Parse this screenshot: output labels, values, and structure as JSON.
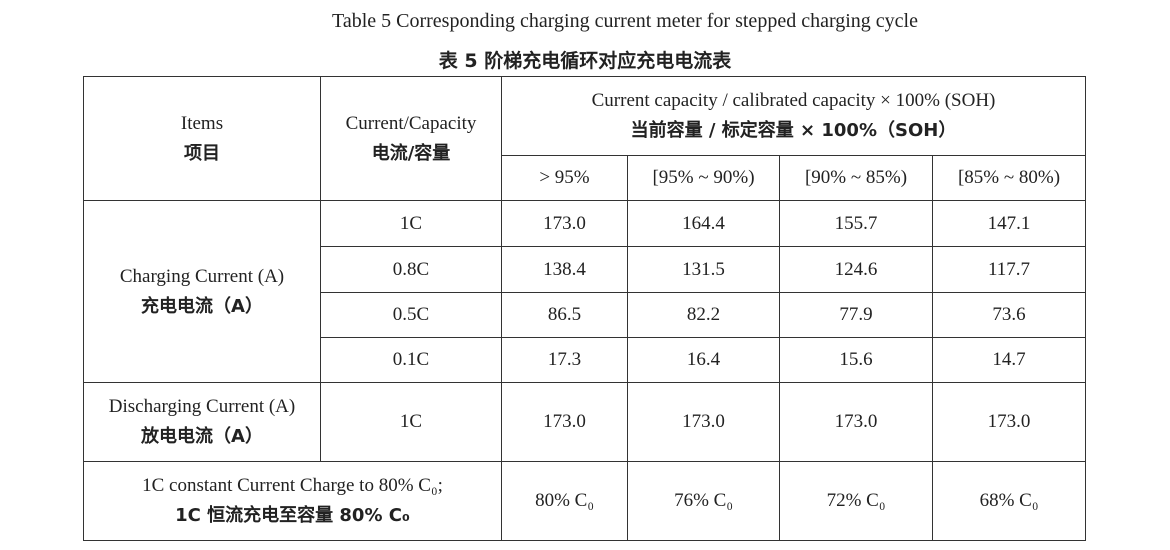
{
  "title_en": "Table 5 Corresponding charging current meter for stepped charging cycle",
  "title_zh": "表 5  阶梯充电循环对应充电电流表",
  "header": {
    "items": [
      "Items",
      "项目"
    ],
    "ratio": [
      "Current/Capacity",
      "电流/容量"
    ],
    "soh": [
      "Current capacity / calibrated capacity × 100% (SOH)",
      "当前容量  /  标定容量  × 100%（SOH）"
    ],
    "ranges": [
      "> 95%",
      "[95% ~ 90%)",
      "[90% ~ 85%)",
      "[85% ~ 80%)"
    ]
  },
  "charging": {
    "label": [
      "Charging Current (A)",
      "充电电流（A）"
    ],
    "rows": [
      [
        "1C",
        "173.0",
        "164.4",
        "155.7",
        "147.1"
      ],
      [
        "0.8C",
        "138.4",
        "131.5",
        "124.6",
        "117.7"
      ],
      [
        "0.5C",
        "86.5",
        "82.2",
        "77.9",
        "73.6"
      ],
      [
        "0.1C",
        "17.3",
        "16.4",
        "15.6",
        "14.7"
      ]
    ]
  },
  "discharging": {
    "label": [
      "Discharging Current (A)",
      "放电电流（A）"
    ],
    "rate": "1C",
    "values": [
      "173.0",
      "173.0",
      "173.0",
      "173.0"
    ]
  },
  "constant": {
    "label": [
      "1C constant Current Charge to 80% C₀;",
      "1C 恒流充电至容量 80% C₀"
    ],
    "values": [
      "80% C₀",
      "76% C₀",
      "72% C₀",
      "68% C₀"
    ]
  }
}
